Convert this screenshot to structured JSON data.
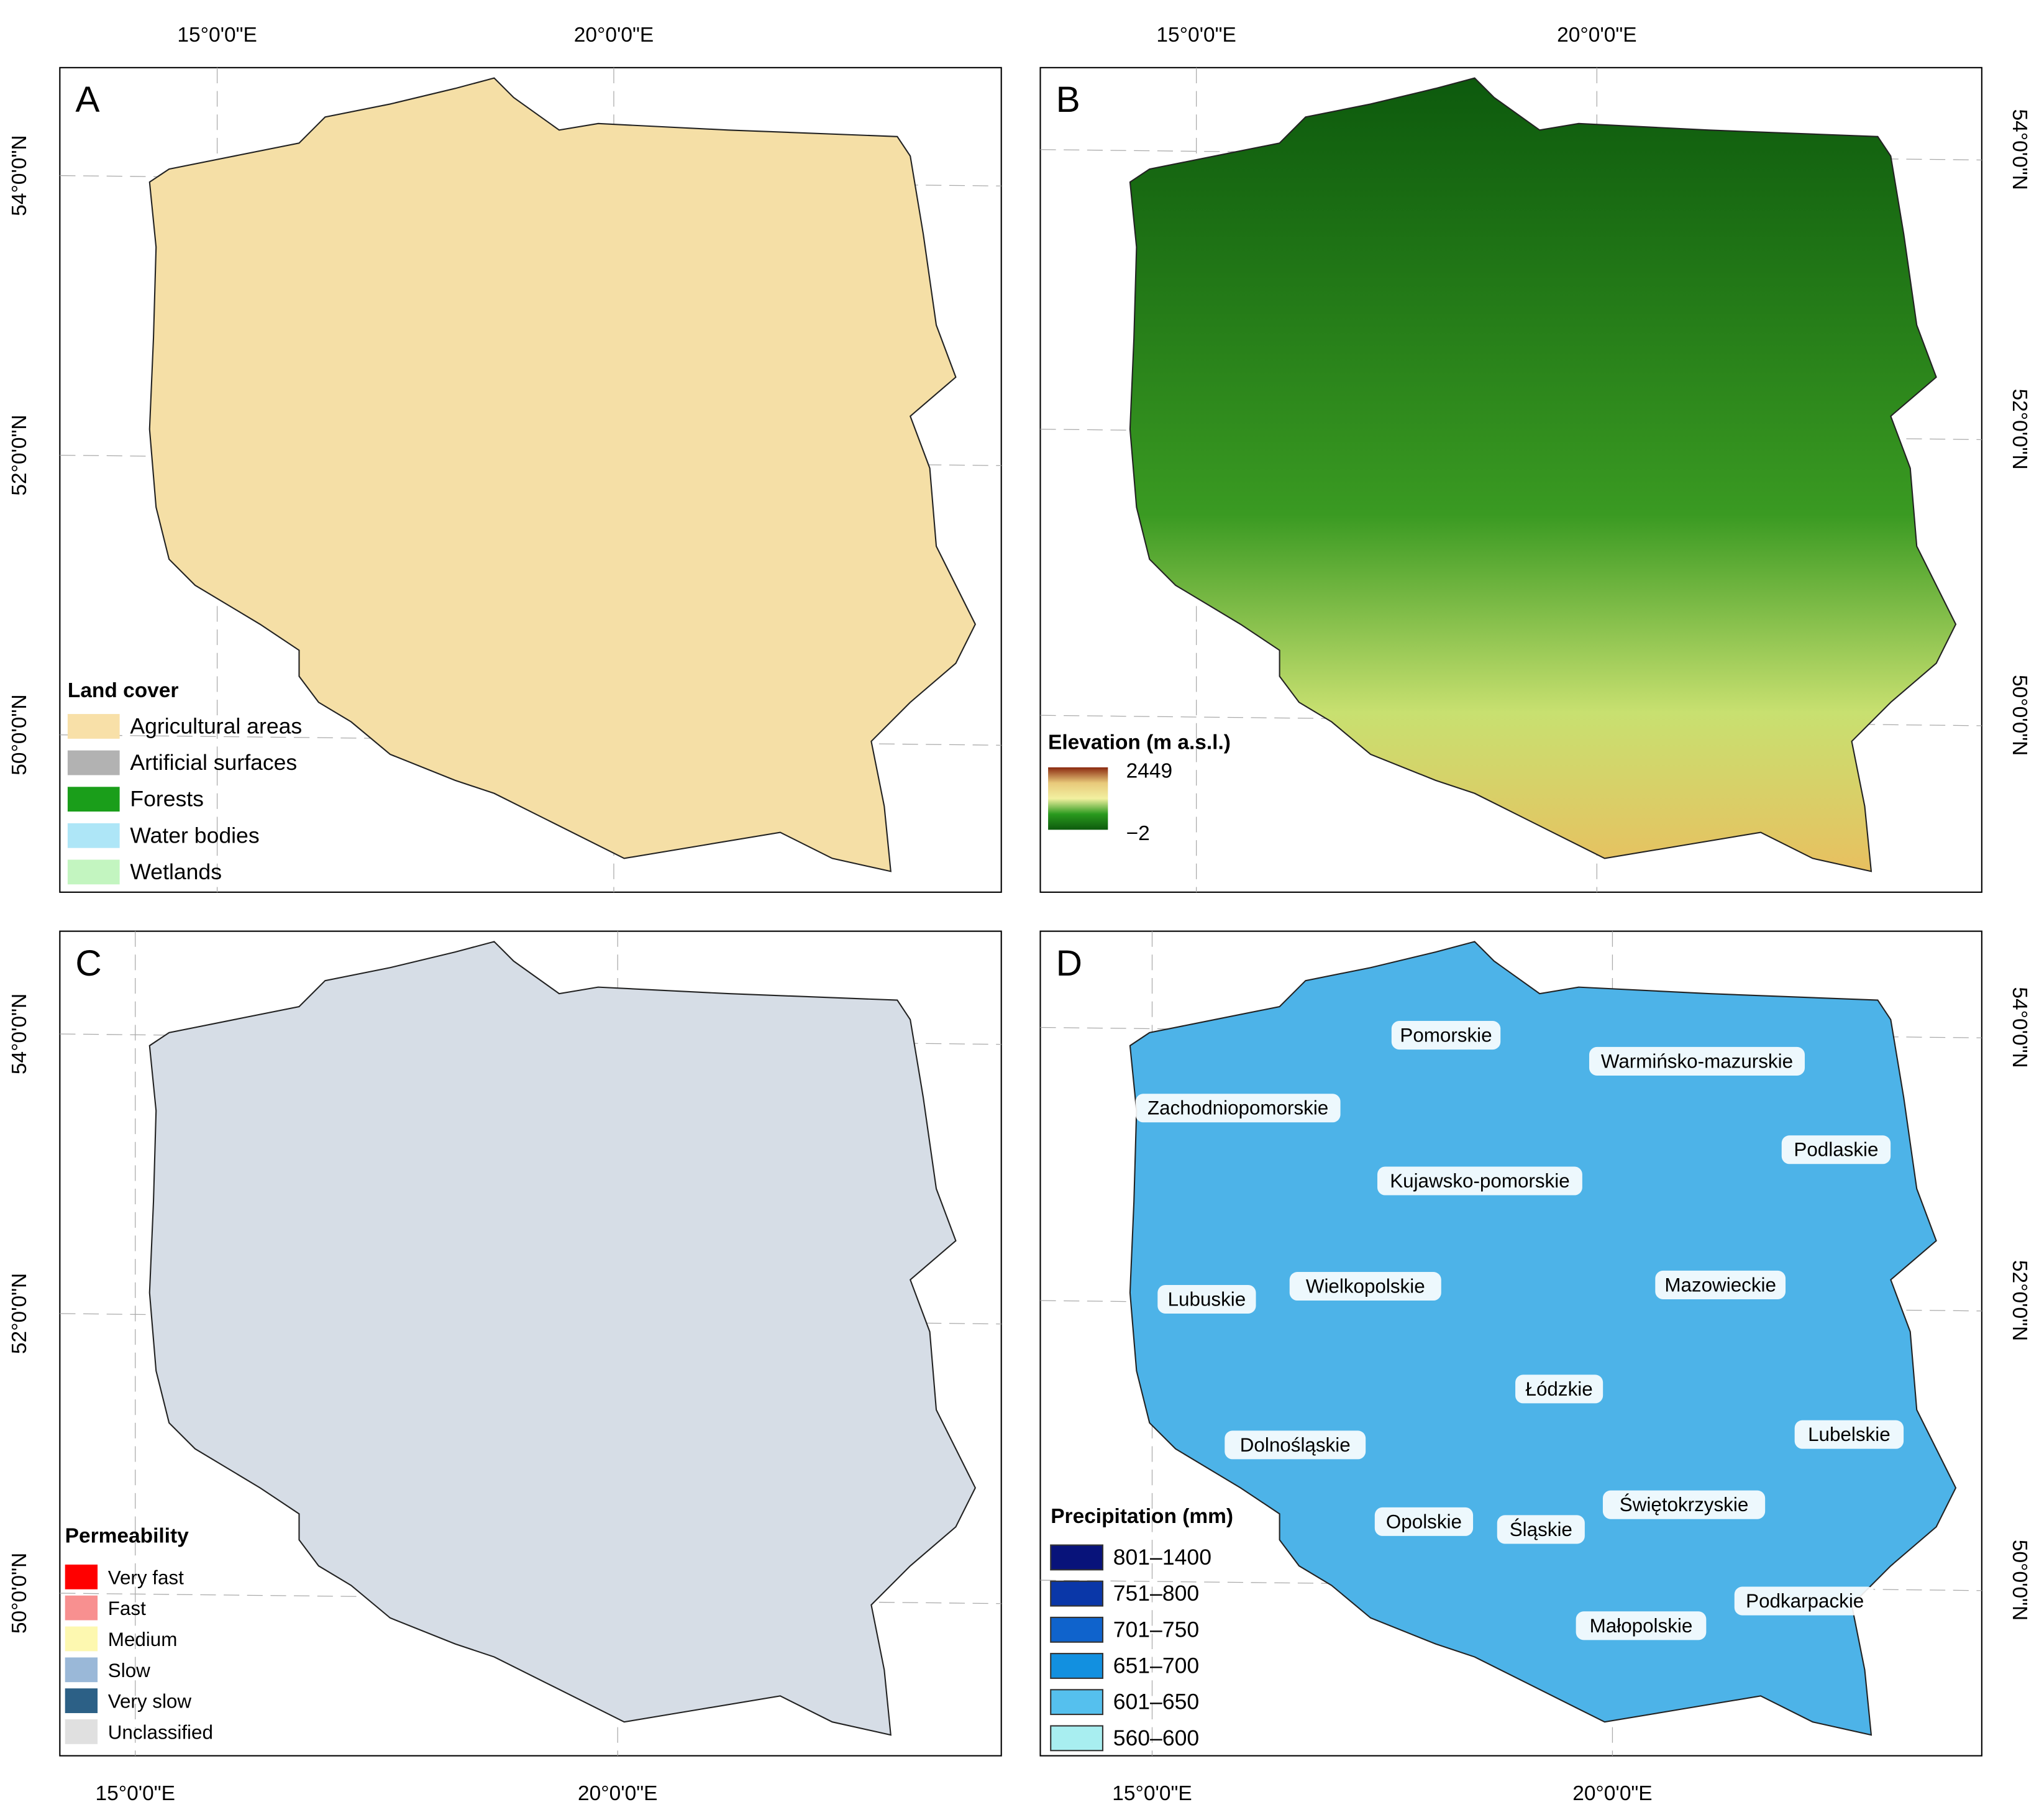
{
  "graticule": {
    "lon": [
      "15°0'0\"E",
      "20°0'0\"E"
    ],
    "lat": [
      "54°0'0\"N",
      "52°0'0\"N",
      "50°0'0\"N"
    ]
  },
  "panels": [
    {
      "letter": "A",
      "map_color": "#f5dfa6",
      "legend_title": "Land cover",
      "legend": [
        {
          "label": "Agricultural areas",
          "color": "#f8e0a8"
        },
        {
          "label": "Artificial surfaces",
          "color": "#b2b2b2"
        },
        {
          "label": "Forests",
          "color": "#1a9e1a"
        },
        {
          "label": "Water bodies",
          "color": "#aee6f7"
        },
        {
          "label": "Wetlands",
          "color": "#c3f5c0"
        }
      ]
    },
    {
      "letter": "B",
      "legend_title": "Elevation (m a.s.l.)",
      "gradient": [
        "#8b2a10",
        "#e8c97a",
        "#f2f0a0",
        "#2a9a1e",
        "#0d5a0d"
      ],
      "legend_max": "2449",
      "legend_min": "−2"
    },
    {
      "letter": "C",
      "map_color": "#d6dde6",
      "legend_title": "Permeability",
      "legend": [
        {
          "label": "Very fast",
          "color": "#ff0000"
        },
        {
          "label": "Fast",
          "color": "#f89090"
        },
        {
          "label": "Medium",
          "color": "#fdf8b0"
        },
        {
          "label": "Slow",
          "color": "#9ab8d8"
        },
        {
          "label": "Very slow",
          "color": "#2c6086"
        },
        {
          "label": "Unclassified",
          "color": "#e0e0e0"
        }
      ]
    },
    {
      "letter": "D",
      "map_color": "#4db3e8",
      "legend_title": "Precipitation (mm)",
      "legend": [
        {
          "label": "801–1400",
          "color": "#08137a"
        },
        {
          "label": "751–800",
          "color": "#0a37a8"
        },
        {
          "label": "701–750",
          "color": "#0f63cc"
        },
        {
          "label": "651–700",
          "color": "#1290e0"
        },
        {
          "label": "601–650",
          "color": "#55c0ee"
        },
        {
          "label": "560–600",
          "color": "#a8eef0"
        }
      ],
      "regions": [
        "Pomorskie",
        "Warmińsko-mazurskie",
        "Zachodniopomorskie",
        "Podlaskie",
        "Kujawsko-pomorskie",
        "Wielkopolskie",
        "Mazowieckie",
        "Lubuskie",
        "Łódzkie",
        "Lubelskie",
        "Dolnośląskie",
        "Świętokrzyskie",
        "Opolskie",
        "Śląskie",
        "Podkarpackie",
        "Małopolskie"
      ]
    }
  ]
}
